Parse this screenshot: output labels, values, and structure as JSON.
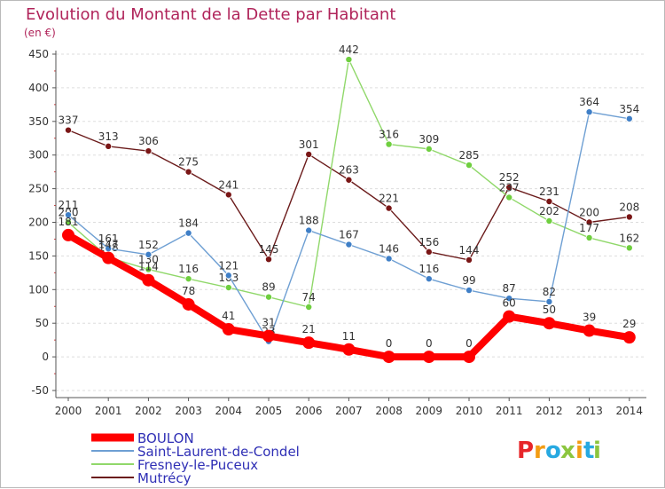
{
  "chart_data": {
    "type": "line",
    "title": "Evolution du Montant de la Dette par Habitant",
    "subtitle": "(en €)",
    "xlabel": "",
    "ylabel": "",
    "categories": [
      "2000",
      "2001",
      "2002",
      "2003",
      "2004",
      "2005",
      "2006",
      "2007",
      "2008",
      "2009",
      "2010",
      "2011",
      "2012",
      "2013",
      "2014"
    ],
    "y_ticks": [
      "-50",
      "0",
      "50",
      "100",
      "150",
      "200",
      "250",
      "300",
      "350",
      "400",
      "450"
    ],
    "ylim": [
      -50,
      450
    ],
    "grid": "horizontal",
    "legend_position": "bottom-left",
    "series": [
      {
        "name": "Mutrécy",
        "color": "#6b1b1b",
        "dot_color": "#7a1616",
        "values": [
          337,
          313,
          306,
          275,
          241,
          145,
          301,
          263,
          221,
          156,
          144,
          252,
          231,
          200,
          208
        ],
        "labels": [
          "337",
          "313",
          "306",
          "275",
          "241",
          "145",
          "301",
          "263",
          "221",
          "156",
          "144",
          "252",
          "231",
          "200",
          "208"
        ]
      },
      {
        "name": "Fresney-le-Puceux",
        "color": "#90d86a",
        "dot_color": "#6fcf3f",
        "values": [
          200,
          148,
          130,
          116,
          103,
          89,
          74,
          442,
          316,
          309,
          285,
          237,
          202,
          177,
          162
        ],
        "labels": [
          "200",
          "148",
          "130",
          "116",
          "103",
          "89",
          "74",
          "442",
          "316",
          "309",
          "285",
          "237",
          "202",
          "177",
          "162"
        ]
      },
      {
        "name": "Saint-Laurent-de-Condel",
        "color": "#6e9fd3",
        "dot_color": "#3f7fc7",
        "values": [
          211,
          161,
          152,
          184,
          121,
          23,
          188,
          167,
          146,
          116,
          99,
          87,
          82,
          364,
          354
        ],
        "labels": [
          "211",
          "161",
          "152",
          "184",
          "121",
          "23",
          "188",
          "167",
          "146",
          "116",
          "99",
          "87",
          "82",
          "364",
          "354"
        ]
      },
      {
        "name": "BOULON",
        "color": "#ff0000",
        "dot_color": "#ff0000",
        "values": [
          181,
          147,
          114,
          78,
          41,
          31,
          21,
          11,
          0,
          0,
          0,
          60,
          50,
          39,
          29
        ],
        "labels": [
          "181",
          "147",
          "114",
          "78",
          "41",
          "31",
          "21",
          "11",
          "0",
          "0",
          "0",
          "60",
          "50",
          "39",
          "29"
        ]
      }
    ],
    "legend": [
      {
        "name": "BOULON",
        "color": "#ff0000"
      },
      {
        "name": "Saint-Laurent-de-Condel",
        "color": "#6e9fd3"
      },
      {
        "name": "Fresney-le-Puceux",
        "color": "#90d86a"
      },
      {
        "name": "Mutrécy",
        "color": "#6b1b1b"
      }
    ]
  },
  "brand": {
    "letters": [
      "P",
      "r",
      "o",
      "x",
      "i",
      "t",
      "i"
    ],
    "colors": [
      "#e7262a",
      "#f39c12",
      "#27a9e1",
      "#8cc63f",
      "#f39c12",
      "#27a9e1",
      "#8cc63f"
    ]
  }
}
